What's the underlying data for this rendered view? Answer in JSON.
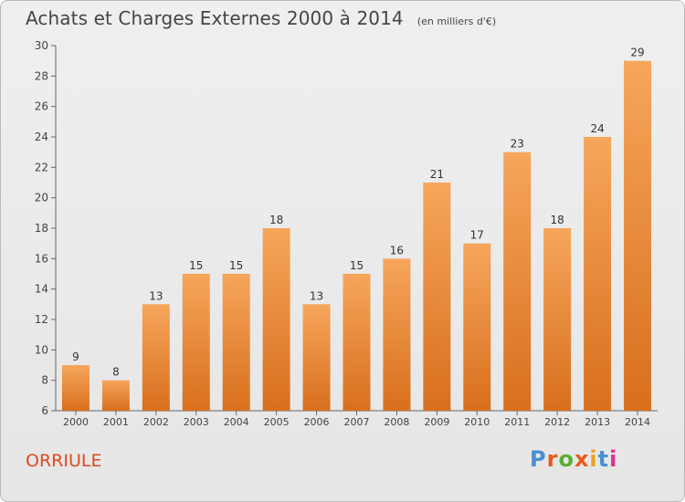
{
  "header": {
    "title": "Achats et Charges Externes 2000 à 2014",
    "unit": "(en milliers d'€)"
  },
  "commune": "ORRIULE",
  "logo": {
    "text": "Proxiti",
    "colors": [
      "#4a8fd0",
      "#e85a1a",
      "#5ab030",
      "#e85a1a",
      "#f0a020",
      "#4a8fd0",
      "#e0308a"
    ]
  },
  "colors": {
    "bar_top": "#f6a65c",
    "bar_bottom": "#d86f1d",
    "title": "#444444",
    "commune": "#e04a1f"
  },
  "chart_data": {
    "type": "bar",
    "title": "Achats et Charges Externes 2000 à 2014",
    "subtitle": "(en milliers d'€)",
    "xlabel": "",
    "ylabel": "",
    "categories": [
      "2000",
      "2001",
      "2002",
      "2003",
      "2004",
      "2005",
      "2006",
      "2007",
      "2008",
      "2009",
      "2010",
      "2011",
      "2012",
      "2013",
      "2014"
    ],
    "values": [
      9,
      8,
      13,
      15,
      15,
      18,
      13,
      15,
      16,
      21,
      17,
      23,
      18,
      24,
      29
    ],
    "ylim": [
      6,
      30
    ],
    "yticks": [
      6,
      8,
      10,
      12,
      14,
      16,
      18,
      20,
      22,
      24,
      26,
      28,
      30
    ],
    "grid": false,
    "legend": "none"
  }
}
